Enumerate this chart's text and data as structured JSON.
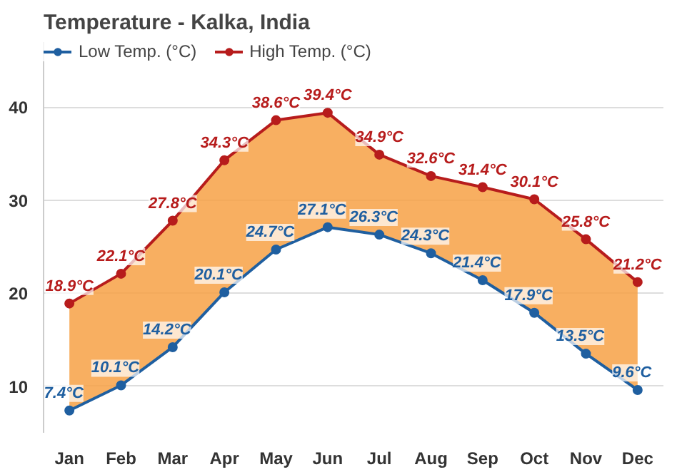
{
  "chart_data": {
    "type": "line",
    "title": "Temperature - Kalka, India",
    "categories": [
      "Jan",
      "Feb",
      "Mar",
      "Apr",
      "May",
      "Jun",
      "Jul",
      "Aug",
      "Sep",
      "Oct",
      "Nov",
      "Dec"
    ],
    "series": [
      {
        "name": "Low Temp. (°C)",
        "color": "#1f5fa0",
        "values": [
          7.4,
          10.1,
          14.2,
          20.1,
          24.7,
          27.1,
          26.3,
          24.3,
          21.4,
          17.9,
          13.5,
          9.6
        ],
        "value_labels": [
          "7.4°C",
          "10.1°C",
          "14.2°C",
          "20.1°C",
          "24.7°C",
          "27.1°C",
          "26.3°C",
          "24.3°C",
          "21.4°C",
          "17.9°C",
          "13.5°C",
          "9.6°C"
        ]
      },
      {
        "name": "High Temp. (°C)",
        "color": "#b71c1c",
        "values": [
          18.9,
          22.1,
          27.8,
          34.3,
          38.6,
          39.4,
          34.9,
          32.6,
          31.4,
          30.1,
          25.8,
          21.2
        ],
        "value_labels": [
          "18.9°C",
          "22.1°C",
          "27.8°C",
          "34.3°C",
          "38.6°C",
          "39.4°C",
          "34.9°C",
          "32.6°C",
          "31.4°C",
          "30.1°C",
          "25.8°C",
          "21.2°C"
        ],
        "lower": [
          7.4,
          10.1,
          14.2,
          20.1,
          24.7,
          27.1,
          26.3,
          24.3,
          21.4,
          17.9,
          13.5,
          9.6
        ],
        "upper": [
          18.9,
          22.1,
          27.8,
          34.3,
          38.6,
          39.4,
          34.9,
          32.6,
          31.4,
          30.1,
          25.8,
          21.2
        ]
      }
    ],
    "ylim": [
      5,
      47
    ],
    "yticks": [
      10,
      20,
      30,
      40
    ],
    "grid": "y",
    "legend": "top left",
    "marker": "circle",
    "line_style": "solid"
  }
}
